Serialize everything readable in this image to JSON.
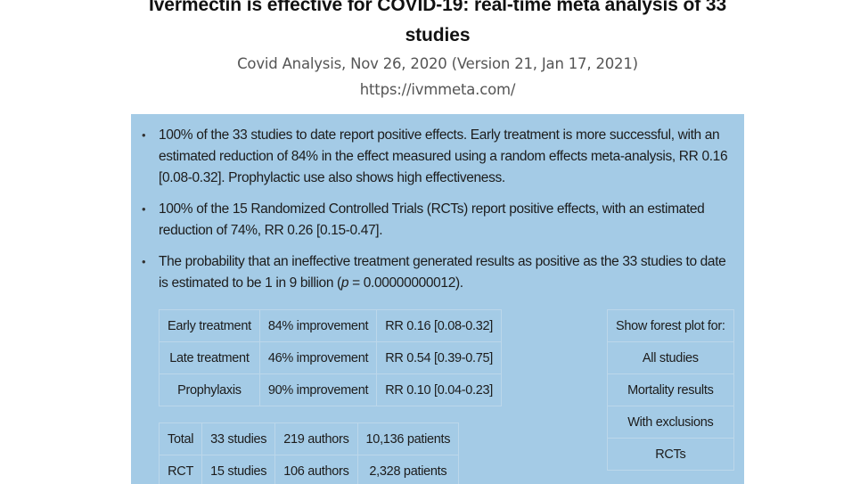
{
  "header": {
    "title_line1": "Ivermectin is effective for COVID-19: real-time meta analysis of 33",
    "title_line2": "studies",
    "byline": "Covid Analysis, Nov 26, 2020 (Version 21, Jan 17, 2021)",
    "url": "https://ivmmeta.com/"
  },
  "summary": {
    "bullets": [
      {
        "text": "100% of the 33 studies to date report positive effects. Early treatment is more successful, with an estimated reduction of 84% in the effect measured using a random effects meta-analysis, RR 0.16 [0.08-0.32]. Prophylactic use also shows high effectiveness."
      },
      {
        "text": "100% of the 15 Randomized Controlled Trials (RCTs) report positive effects, with an estimated reduction of 74%, RR 0.26 [0.15-0.47]."
      },
      {
        "text_before": "The probability that an ineffective treatment generated results as positive as the 33 studies to date is estimated to be 1 in 9 billion (",
        "p_symbol": "p",
        "text_after": " = 0.00000000012)."
      }
    ]
  },
  "effects_table": [
    {
      "group": "Early treatment",
      "improvement": "84% improvement",
      "rr": "RR 0.16 [0.08-0.32]"
    },
    {
      "group": "Late treatment",
      "improvement": "46% improvement",
      "rr": "RR 0.54 [0.39-0.75]"
    },
    {
      "group": "Prophylaxis",
      "improvement": "90% improvement",
      "rr": "RR 0.10 [0.04-0.23]"
    }
  ],
  "totals_table": [
    {
      "label": "Total",
      "studies": "33 studies",
      "authors": "219 authors",
      "patients": "10,136 patients"
    },
    {
      "label": "RCT",
      "studies": "15 studies",
      "authors": "106 authors",
      "patients": "2,328 patients"
    }
  ],
  "forest_plot": {
    "heading": "Show forest plot for:",
    "options": [
      "All studies",
      "Mortality results",
      "With exclusions",
      "RCTs"
    ]
  },
  "colors": {
    "panel_background": "#a4cbe6",
    "cell_border": "#bcd7ea"
  }
}
